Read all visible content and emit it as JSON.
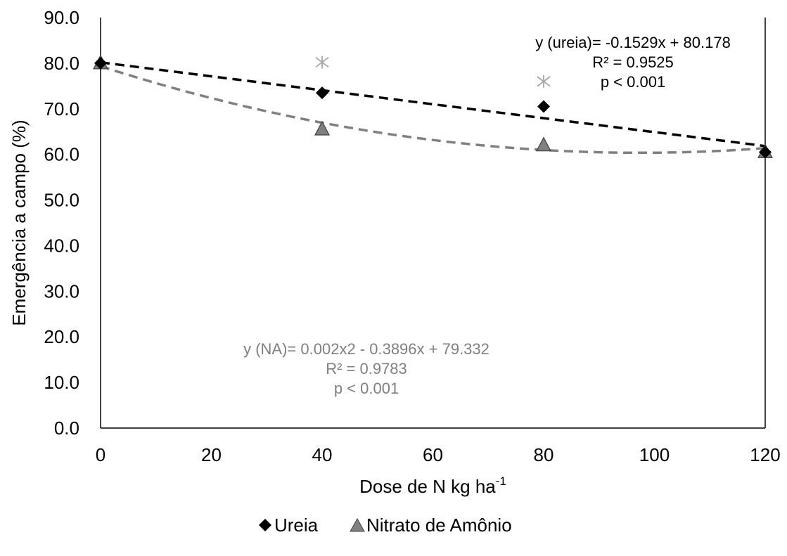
{
  "chart_data": {
    "type": "scatter",
    "xlabel": "Dose de N kg ha",
    "xlabel_superscript": "-1",
    "ylabel": "Emergência a campo (%)",
    "xlim": [
      0,
      120
    ],
    "ylim": [
      0,
      90
    ],
    "x_ticks": [
      "0",
      "20",
      "40",
      "60",
      "80",
      "100",
      "120"
    ],
    "y_ticks": [
      "0.0",
      "10.0",
      "20.0",
      "30.0",
      "40.0",
      "50.0",
      "60.0",
      "70.0",
      "80.0",
      "90.0"
    ],
    "grid": false,
    "legend_position": "bottom",
    "series": [
      {
        "name": "Ureia",
        "marker": "diamond",
        "color": "#000000",
        "x": [
          0,
          40,
          80,
          120
        ],
        "y": [
          80.0,
          73.5,
          70.5,
          60.5
        ],
        "trendline": {
          "kind": "linear",
          "a": -0.1529,
          "b": 80.178,
          "color": "#000000"
        }
      },
      {
        "name": "Nitrato de Amônio",
        "marker": "triangle",
        "color": "#808080",
        "x": [
          0,
          40,
          80,
          120
        ],
        "y": [
          80.0,
          65.5,
          62.0,
          60.5
        ],
        "trendline": {
          "kind": "quadratic",
          "a2": 0.002,
          "a1": -0.3896,
          "a0": 79.332,
          "color": "#808080"
        }
      }
    ],
    "significance_markers": [
      {
        "x": 40,
        "y": 80.2,
        "symbol": "asterisk",
        "color": "#a6a6a6"
      },
      {
        "x": 80,
        "y": 76.0,
        "symbol": "asterisk",
        "color": "#a6a6a6"
      }
    ],
    "annotations": [
      {
        "id": "ureia",
        "color": "#000000",
        "lines": [
          "y (ureia)= -0.1529x + 80.178",
          "R² = 0.9525",
          "p < 0.001"
        ]
      },
      {
        "id": "na",
        "color": "#808080",
        "lines": [
          "y (NA)= 0.002x2 - 0.3896x + 79.332",
          "R² = 0.9783",
          "p < 0.001"
        ]
      }
    ]
  }
}
